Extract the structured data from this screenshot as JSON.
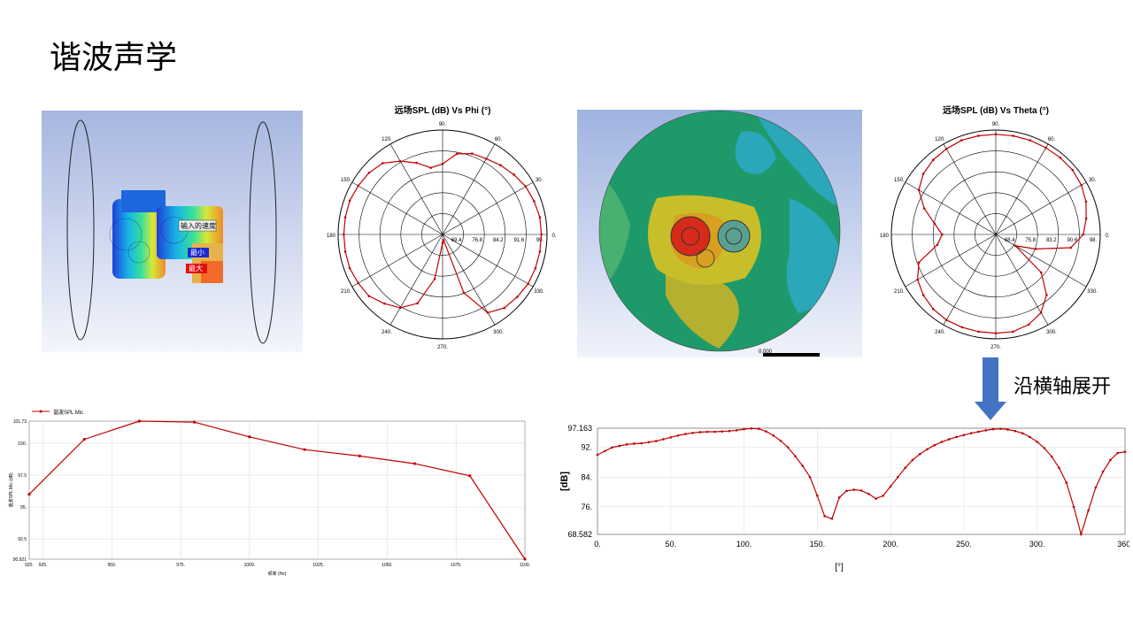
{
  "slide": {
    "title": "谐波声学",
    "annotation": "沿横轴展开"
  },
  "colors": {
    "series": "#c00000",
    "arrow": "#4472c4",
    "model_bg_top": "#a9b8e0",
    "model_bg_bottom": "#ffffff"
  },
  "model_image": {
    "label_path": "输入的速度",
    "label_min": "最小",
    "label_max": "最大"
  },
  "contour_image": {
    "scale_label": "0.000"
  },
  "chart_data": [
    {
      "type": "polar",
      "title": "远场SPL (dB) Vs Phi (°)",
      "angle_ticks": [
        "0.",
        "30.",
        "60.",
        "90.",
        "120.",
        "150.",
        "180",
        "210.",
        "240.",
        "270.",
        "300.",
        "330."
      ],
      "radial_ticks": [
        "69.4",
        "76.8",
        "84.2",
        "91.6",
        "99."
      ],
      "rlim": [
        62,
        99
      ],
      "series": [
        {
          "theta": [
            0,
            10,
            20,
            30,
            40,
            50,
            60,
            70,
            80,
            90,
            100,
            110,
            120,
            130,
            140,
            150,
            160,
            170,
            180,
            190,
            200,
            210,
            220,
            230,
            240,
            250,
            260,
            270,
            280,
            290,
            300,
            310,
            320,
            330,
            340,
            350
          ],
          "r": [
            97,
            97,
            96.5,
            96,
            95,
            94,
            93,
            92.5,
            91,
            87,
            86,
            89,
            92,
            95,
            96,
            96.5,
            97,
            97,
            97,
            97,
            97,
            96.5,
            96,
            94,
            92,
            88,
            78,
            65,
            64,
            84,
            94,
            96,
            96.5,
            97,
            97,
            97
          ]
        }
      ]
    },
    {
      "type": "polar",
      "title": "远场SPL (dB) Vs Theta (°)",
      "angle_ticks": [
        "0.",
        "30.",
        "60.",
        "90.",
        "120.",
        "150.",
        "180",
        "210.",
        "240.",
        "270.",
        "300.",
        "330."
      ],
      "radial_ticks": [
        "68.4",
        "75.8",
        "83.2",
        "90.6",
        "98."
      ],
      "rlim": [
        61,
        98
      ],
      "series": [
        {
          "theta": [
            0,
            10,
            20,
            30,
            40,
            50,
            60,
            70,
            80,
            90,
            100,
            110,
            120,
            130,
            140,
            150,
            160,
            170,
            180,
            190,
            200,
            210,
            220,
            230,
            240,
            250,
            260,
            270,
            280,
            290,
            300,
            310,
            320,
            330,
            340,
            350
          ],
          "r": [
            92,
            93.5,
            95,
            96,
            96.5,
            96.5,
            96.5,
            96.5,
            96.5,
            96.5,
            96.5,
            96.5,
            96,
            95.5,
            94.5,
            92.5,
            88,
            83,
            80,
            82,
            90,
            93,
            94.5,
            95.5,
            96,
            96,
            96,
            96,
            96,
            95,
            93,
            89,
            82,
            69,
            76,
            88
          ]
        }
      ]
    },
    {
      "type": "line",
      "legend": "谐波SPL Mic",
      "xlabel": "频率 (Hz)",
      "ylabel": "谐波SPL Mic (dB)",
      "x": [
        920,
        940,
        960,
        980,
        1000,
        1020,
        1040,
        1060,
        1080,
        1100
      ],
      "values": [
        96.0,
        100.3,
        101.73,
        101.65,
        100.5,
        99.5,
        99.0,
        98.4,
        97.45,
        90.921
      ],
      "xlim": [
        920,
        1100
      ],
      "ylim": [
        90.921,
        101.73
      ],
      "x_ticks": [
        "920.",
        "925.",
        "950.",
        "975.",
        "1000.",
        "1025.",
        "1050.",
        "1075.",
        "1100."
      ],
      "y_ticks": [
        "101.73",
        "100.",
        "97.5",
        "95.",
        "92.5",
        "90.921"
      ]
    },
    {
      "type": "line",
      "xlabel": "[°]",
      "ylabel": "[dB]",
      "x": [
        0,
        5,
        10,
        15,
        20,
        25,
        30,
        35,
        40,
        45,
        50,
        55,
        60,
        65,
        70,
        75,
        80,
        85,
        90,
        95,
        100,
        105,
        110,
        115,
        120,
        125,
        130,
        135,
        140,
        145,
        150,
        155,
        160,
        165,
        170,
        175,
        180,
        185,
        190,
        195,
        200,
        205,
        210,
        215,
        220,
        225,
        230,
        235,
        240,
        245,
        250,
        255,
        260,
        265,
        270,
        275,
        280,
        285,
        290,
        295,
        300,
        305,
        310,
        315,
        320,
        325,
        330,
        335,
        340,
        345,
        350,
        355,
        360
      ],
      "values": [
        90,
        91,
        92,
        92.4,
        92.8,
        93,
        93.1,
        93.4,
        93.7,
        94.2,
        94.7,
        95.2,
        95.6,
        95.9,
        96.1,
        96.2,
        96.2,
        96.3,
        96.4,
        96.6,
        96.9,
        97.1,
        97.0,
        96.3,
        95.2,
        93.8,
        92.0,
        89.6,
        87.0,
        84.0,
        79,
        73.5,
        72.8,
        78.5,
        80.3,
        80.6,
        80.4,
        79.5,
        78.2,
        79,
        81.5,
        84,
        86.5,
        88.6,
        90.2,
        91.5,
        92.6,
        93.5,
        94.2,
        94.8,
        95.3,
        95.8,
        96.2,
        96.6,
        96.9,
        97.0,
        96.8,
        96.4,
        95.8,
        94.8,
        93.5,
        91.8,
        89.5,
        86.5,
        82.5,
        76.0,
        68.6,
        75.0,
        81.2,
        85.5,
        88.6,
        90.5,
        90.8
      ],
      "xlim": [
        0,
        360
      ],
      "ylim": [
        68.582,
        97.163
      ],
      "x_ticks": [
        "0.",
        "50.",
        "100.",
        "150.",
        "200.",
        "250.",
        "300.",
        "360."
      ],
      "y_ticks": [
        "97.163",
        "92.",
        "84.",
        "76.",
        "68.582"
      ]
    }
  ]
}
